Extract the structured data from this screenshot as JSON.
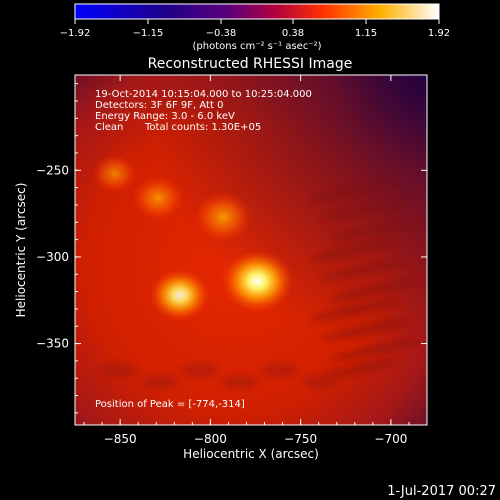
{
  "chart_data": {
    "type": "heatmap",
    "title": "Reconstructed RHESSI Image",
    "colorbar": {
      "min": -1.92,
      "max": 1.92,
      "tick_labels": [
        "-1.92",
        "-1.15",
        "-0.38",
        "0.38",
        "1.15",
        "1.92"
      ],
      "label": "(photons cm⁻² s⁻¹ asec⁻²)"
    },
    "xlabel": "Heliocentric X (arcsec)",
    "ylabel": "Heliocentric Y (arcsec)",
    "xlim": [
      -875,
      -680
    ],
    "ylim": [
      -397,
      -195
    ],
    "x_ticks": [
      -850,
      -800,
      -750,
      -700
    ],
    "y_ticks": [
      -250,
      -300,
      -350
    ],
    "x_tick_labels": [
      "−850",
      "−800",
      "−750",
      "−700"
    ],
    "y_tick_labels": [
      "−250",
      "−300",
      "−350"
    ],
    "annotations": [
      "19-Oct-2014 10:15:04.000 to 10:25:04.000",
      "Detectors: 3F 6F 9F, Att 0",
      "Energy Range: 3.0 - 6.0 keV",
      "Clean",
      "Total counts: 1.30E+05"
    ],
    "peak_label": "Position of Peak = [-774,-314]",
    "peak": [
      -774,
      -314
    ],
    "sources": [
      {
        "x": -774,
        "y": -314,
        "intensity": 1.92
      },
      {
        "x": -817,
        "y": -322,
        "intensity": 1.35
      },
      {
        "x": -793,
        "y": -277,
        "intensity": 1.25
      },
      {
        "x": -829,
        "y": -266,
        "intensity": 0.95
      },
      {
        "x": -853,
        "y": -252,
        "intensity": 0.6
      }
    ],
    "colormap": "RHESSI red-temperature",
    "grid": false
  },
  "footer": {
    "date": "1-Jul-2017 00:27"
  }
}
